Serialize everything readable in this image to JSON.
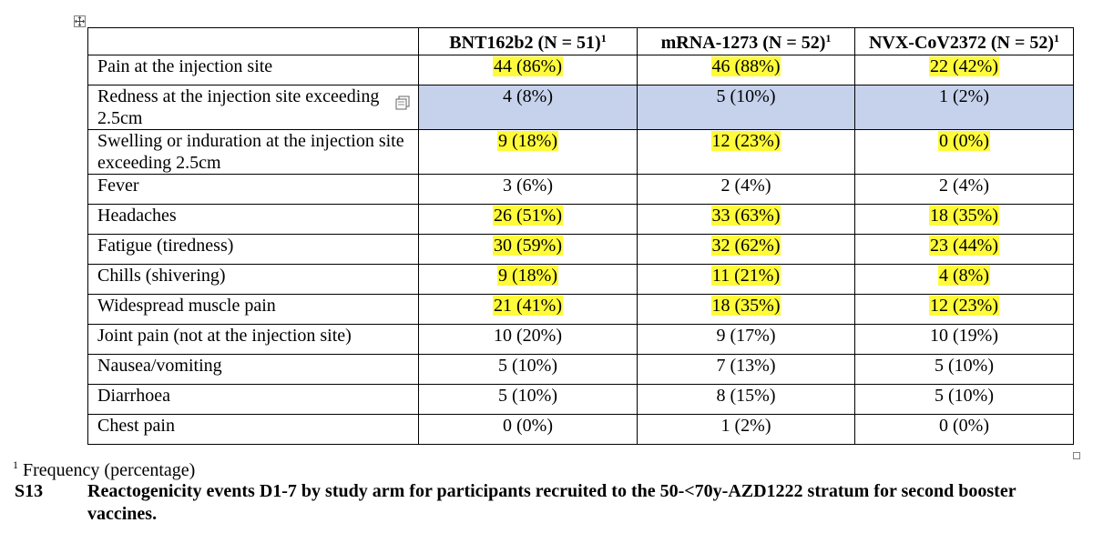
{
  "table": {
    "columns": [
      {
        "label": "BNT162b2 (N = 51)",
        "sup": "1"
      },
      {
        "label": "mRNA-1273 (N = 52)",
        "sup": "1"
      },
      {
        "label": "NVX-CoV2372 (N = 52)",
        "sup": "1"
      }
    ],
    "rows": [
      {
        "label": "Pain at the injection site",
        "values": [
          "44 (86%)",
          "46 (88%)",
          "22 (42%)"
        ],
        "highlighted": true
      },
      {
        "label": "Redness at the injection site exceeding 2.5cm",
        "values": [
          "4 (8%)",
          "5 (10%)",
          "1 (2%)"
        ],
        "highlighted": false
      },
      {
        "label": "Swelling or induration at the injection site exceeding 2.5cm",
        "values": [
          "9 (18%)",
          "12 (23%)",
          "0 (0%)"
        ],
        "highlighted": true
      },
      {
        "label": "Fever",
        "values": [
          "3 (6%)",
          "2 (4%)",
          "2 (4%)"
        ],
        "highlighted": false
      },
      {
        "label": "Headaches",
        "values": [
          "26 (51%)",
          "33 (63%)",
          "18 (35%)"
        ],
        "highlighted": true
      },
      {
        "label": "Fatigue (tiredness)",
        "values": [
          "30 (59%)",
          "32 (62%)",
          "23 (44%)"
        ],
        "highlighted": true
      },
      {
        "label": "Chills (shivering)",
        "values": [
          "9 (18%)",
          "11 (21%)",
          "4 (8%)"
        ],
        "highlighted": true
      },
      {
        "label": "Widespread muscle pain",
        "values": [
          "21 (41%)",
          "18 (35%)",
          "12 (23%)"
        ],
        "highlighted": true
      },
      {
        "label": "Joint pain (not at the injection site)",
        "values": [
          "10 (20%)",
          "9 (17%)",
          "10 (19%)"
        ],
        "highlighted": false
      },
      {
        "label": "Nausea/vomiting",
        "values": [
          "5 (10%)",
          "7 (13%)",
          "5 (10%)"
        ],
        "highlighted": false
      },
      {
        "label": "Diarrhoea",
        "values": [
          "5 (10%)",
          "8 (15%)",
          "5 (10%)"
        ],
        "highlighted": false
      },
      {
        "label": "Chest pain",
        "values": [
          "0 (0%)",
          "1 (2%)",
          "0 (0%)"
        ],
        "highlighted": false
      }
    ]
  },
  "footnote": {
    "sup": "1",
    "text": "Frequency (percentage)"
  },
  "caption": {
    "number": "S13",
    "text": "Reactogenicity events D1-7 by study arm for participants recruited to the 50-<70y-AZD1222 stratum for second booster vaccines."
  },
  "colors": {
    "highlight": "#fffb3a",
    "selection": "#c6d2ec"
  },
  "icons": {
    "move": "table-move-handle-icon",
    "resize": "table-resize-handle-icon",
    "cell": "cell-options-icon"
  }
}
